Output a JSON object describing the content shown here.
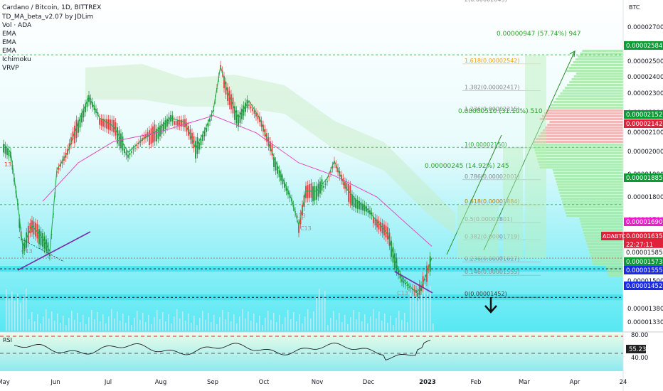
{
  "header": {
    "title": "Cardano / Bitcoin, 1D, BITTREX",
    "indicators": [
      "TD_MA_beta_v2.07 by JDLim",
      "Vol · ADA",
      "EMA",
      "EMA",
      "EMA",
      "Ichimoku",
      "VRVP"
    ]
  },
  "chart_data": {
    "type": "candlestick",
    "title": "Cardano / Bitcoin, 1D, BITTREX",
    "currency_label": "BTC",
    "x_ticks": [
      "May",
      "Jun",
      "Jul",
      "Aug",
      "Sep",
      "Oct",
      "Nov",
      "Dec",
      "2023",
      "Feb",
      "Mar",
      "Apr",
      "24"
    ],
    "y_ticks": [
      "0.00002700",
      "0.00002600",
      "0.00002500",
      "0.00002400",
      "0.00002300",
      "0.00002200",
      "0.00002100",
      "0.00002000",
      "0.00001900",
      "0.00001800",
      "0.00001700",
      "0.00001600",
      "0.00001500",
      "0.00001380",
      "0.00001330"
    ],
    "price_range": [
      1.29e-05,
      2.84e-05
    ],
    "price_tags": [
      {
        "value": "0.00002584",
        "color": "#0b9a36"
      },
      {
        "value": "0.00002152",
        "color": "#0b9a36"
      },
      {
        "value": "0.00002142",
        "color": "#e0213a"
      },
      {
        "value": "0.00001885",
        "color": "#0b9a36"
      },
      {
        "value": "0.00001690",
        "color": "#e91ecb"
      },
      {
        "value": "0.00001635",
        "color": "#e0213a"
      },
      {
        "value": "22:27:11",
        "color": "#e0213a"
      },
      {
        "value": "0.00001585",
        "color": "#ffffff"
      },
      {
        "value": "0.00001573",
        "color": "#0b9a36"
      },
      {
        "value": "0.00001555",
        "color": "#1b2ae6"
      },
      {
        "value": "0.00001452",
        "color": "#1b2ae6"
      }
    ],
    "symbol_tag": "ADABTC",
    "fib_levels": [
      {
        "label": "2(0.00002849)"
      },
      {
        "label": "1.618(0.00002542)"
      },
      {
        "label": "1.382(0.00002417)"
      },
      {
        "label": "1.236(0.00002315)"
      },
      {
        "label": "1(0.00002150)"
      },
      {
        "label": "0.786(0.00002001)"
      },
      {
        "label": "0.618(0.00001884)"
      },
      {
        "label": "0.5(0.00001801)"
      },
      {
        "label": "0.382(0.00001719)"
      },
      {
        "label": "0.236(0.00001617)"
      },
      {
        "label": "0.146(0.00001555)"
      },
      {
        "label": "0(0.00001452)"
      }
    ],
    "targets": [
      {
        "label": "0.00000947 (57.74%) 947"
      },
      {
        "label": "0.00000510 (31.10%) 510"
      },
      {
        "label": "0.00000245 (14.92%) 245"
      }
    ],
    "td_labels": [
      "13",
      "A13",
      "C13",
      "C13",
      "C13"
    ],
    "series": [
      {
        "name": "Price (close)",
        "x": [
          "May",
          "Jun",
          "Jul",
          "Aug",
          "Sep",
          "Oct",
          "Nov",
          "Dec",
          "2023"
        ],
        "values": [
          2.18e-05,
          1.76e-05,
          2.32e-05,
          2.28e-05,
          2.46e-05,
          2.22e-05,
          1.96e-05,
          1.68e-05,
          1.62e-05
        ]
      }
    ],
    "rsi": {
      "label": "RSI",
      "upper": "80.00",
      "lower": "40.00",
      "current": "55.23"
    }
  }
}
